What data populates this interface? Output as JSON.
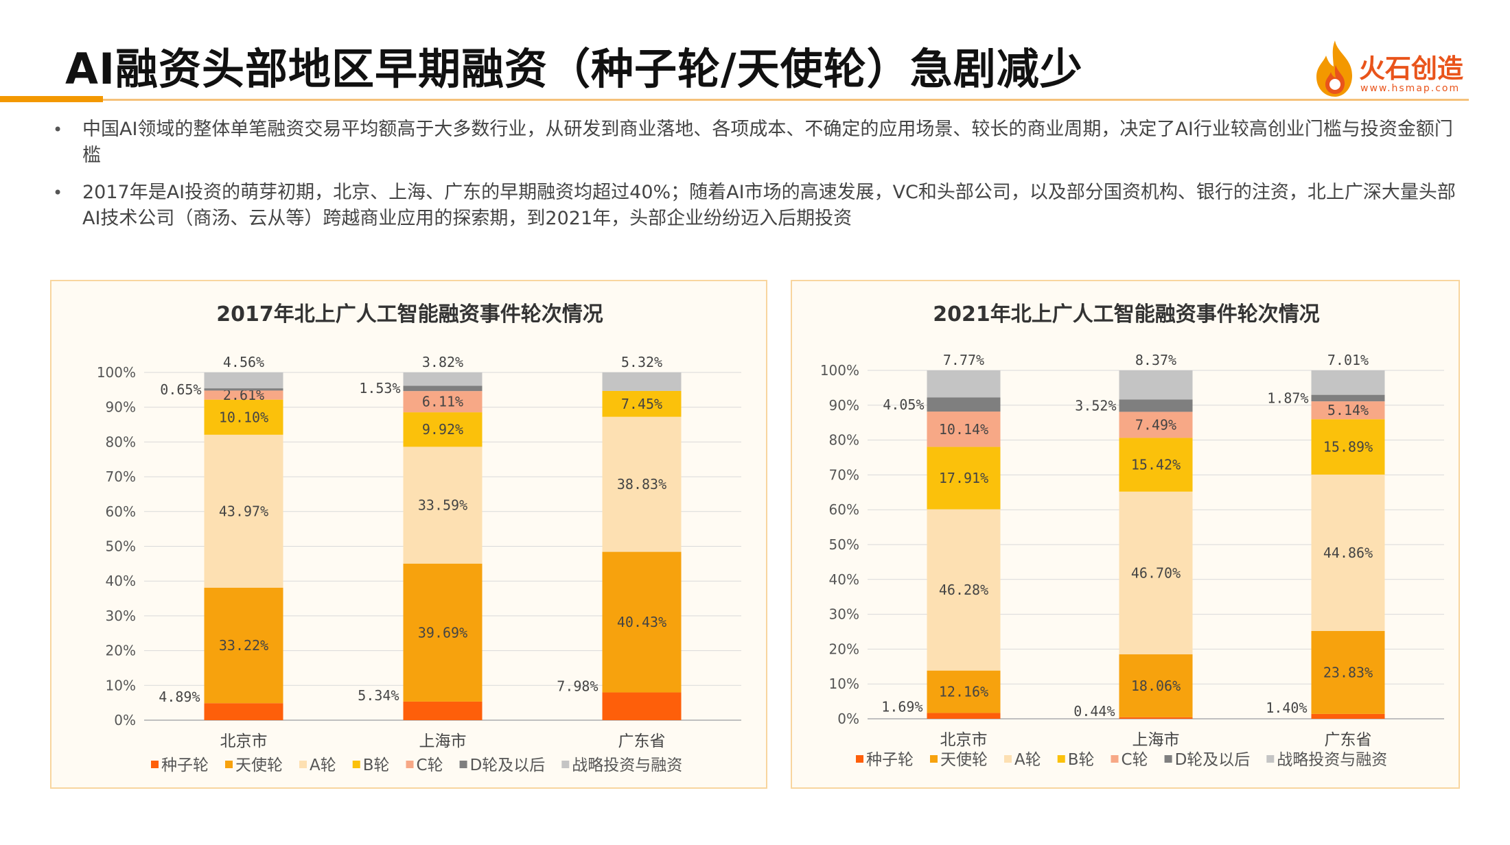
{
  "header": {
    "title": "AI融资头部地区早期融资（种子轮/天使轮）急剧减少",
    "logo_name": "火石创造",
    "logo_url": "www.hsmap.com"
  },
  "bullets": [
    "中国AI领域的整体单笔融资交易平均额高于大多数行业，从研发到商业落地、各项成本、不确定的应用场景、较长的商业周期，决定了AI行业较高创业门槛与投资金额门槛",
    "2017年是AI投资的萌芽初期，北京、上海、广东的早期融资均超过40%；随着AI市场的高速发展，VC和头部公司，以及部分国资机构、银行的注资，北上广深大量头部AI技术公司（商汤、云从等）跨越商业应用的探索期，到2021年，头部企业纷纷迈入后期投资"
  ],
  "colors": {
    "种子轮": "#fe5f0a",
    "天使轮": "#f7a20d",
    "A轮": "#fde0b2",
    "B轮": "#fbc10b",
    "C轮": "#f7a886",
    "D轮及以后": "#7f7f7f",
    "战略投资与融资": "#c4c4c4"
  },
  "chart_data": [
    {
      "type": "bar",
      "stacked": true,
      "title": "2017年北上广人工智能融资事件轮次情况",
      "categories": [
        "北京市",
        "上海市",
        "广东省"
      ],
      "ylim": [
        0,
        100
      ],
      "yticks": [
        "0%",
        "10%",
        "20%",
        "30%",
        "40%",
        "50%",
        "60%",
        "70%",
        "80%",
        "90%",
        "100%"
      ],
      "grid": true,
      "legend": "bottom",
      "series": [
        {
          "name": "种子轮",
          "values": [
            4.89,
            5.34,
            7.98
          ],
          "labels": [
            "4.89%",
            "5.34%",
            "7.98%"
          ]
        },
        {
          "name": "天使轮",
          "values": [
            33.22,
            39.69,
            40.43
          ],
          "labels": [
            "33.22%",
            "39.69%",
            "40.43%"
          ]
        },
        {
          "name": "A轮",
          "values": [
            43.97,
            33.59,
            38.83
          ],
          "labels": [
            "43.97%",
            "33.59%",
            "38.83%"
          ]
        },
        {
          "name": "B轮",
          "values": [
            10.1,
            9.92,
            7.45
          ],
          "labels": [
            "10.10%",
            "9.92%",
            "7.45%"
          ]
        },
        {
          "name": "C轮",
          "values": [
            2.61,
            6.11,
            0
          ],
          "labels": [
            "2.61%",
            "6.11%",
            ""
          ]
        },
        {
          "name": "D轮及以后",
          "values": [
            0.65,
            1.53,
            0
          ],
          "labels": [
            "0.65%",
            "1.53%",
            ""
          ]
        },
        {
          "name": "战略投资与融资",
          "values": [
            4.56,
            3.82,
            5.32
          ],
          "labels": [
            "4.56%",
            "3.82%",
            "5.32%"
          ]
        }
      ]
    },
    {
      "type": "bar",
      "stacked": true,
      "title": "2021年北上广人工智能融资事件轮次情况",
      "categories": [
        "北京市",
        "上海市",
        "广东省"
      ],
      "ylim": [
        0,
        100
      ],
      "yticks": [
        "0%",
        "10%",
        "20%",
        "30%",
        "40%",
        "50%",
        "60%",
        "70%",
        "80%",
        "90%",
        "100%"
      ],
      "grid": true,
      "legend": "bottom",
      "series": [
        {
          "name": "种子轮",
          "values": [
            1.69,
            0.44,
            1.4
          ],
          "labels": [
            "1.69%",
            "0.44%",
            "1.40%"
          ]
        },
        {
          "name": "天使轮",
          "values": [
            12.16,
            18.06,
            23.83
          ],
          "labels": [
            "12.16%",
            "18.06%",
            "23.83%"
          ]
        },
        {
          "name": "A轮",
          "values": [
            46.28,
            46.7,
            44.86
          ],
          "labels": [
            "46.28%",
            "46.70%",
            "44.86%"
          ]
        },
        {
          "name": "B轮",
          "values": [
            17.91,
            15.42,
            15.89
          ],
          "labels": [
            "17.91%",
            "15.42%",
            "15.89%"
          ]
        },
        {
          "name": "C轮",
          "values": [
            10.14,
            7.49,
            5.14
          ],
          "labels": [
            "10.14%",
            "7.49%",
            "5.14%"
          ]
        },
        {
          "name": "D轮及以后",
          "values": [
            4.05,
            3.52,
            1.87
          ],
          "labels": [
            "4.05%",
            "3.52%",
            "1.87%"
          ]
        },
        {
          "name": "战略投资与融资",
          "values": [
            7.77,
            8.37,
            7.01
          ],
          "labels": [
            "7.77%",
            "8.37%",
            "7.01%"
          ]
        }
      ]
    }
  ]
}
